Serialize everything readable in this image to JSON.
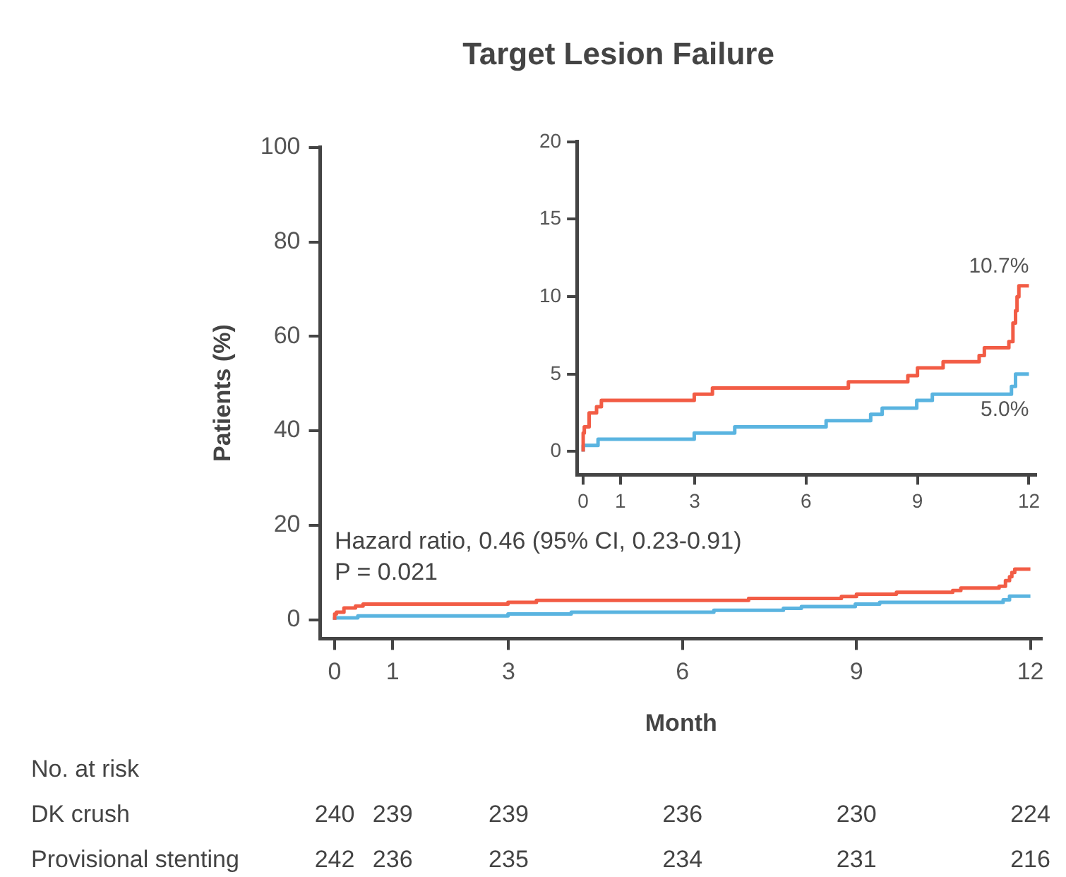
{
  "chart_data": [
    {
      "type": "step",
      "title": "Target Lesion Failure",
      "xlabel": "Month",
      "ylabel": "Patients (%)",
      "xlim": [
        -0.25,
        12.2
      ],
      "xticks": [
        0,
        1,
        3,
        6,
        9,
        12
      ],
      "ylim": [
        -4,
        100
      ],
      "yticks": [
        0,
        20,
        40,
        60,
        80,
        100
      ],
      "grid": false,
      "legend": false,
      "series": [
        {
          "color": "#f25c45",
          "x": [
            0,
            0.03,
            0.16,
            0.36,
            0.49,
            2.99,
            3.48,
            7.14,
            8.74,
            9.0,
            9.69,
            10.66,
            10.8,
            11.46,
            11.57,
            11.64,
            11.68,
            11.73,
            11.77,
            12
          ],
          "values": [
            0,
            1.2,
            1.6,
            2.5,
            2.9,
            3.3,
            3.7,
            4.1,
            4.5,
            4.9,
            5.4,
            5.8,
            6.2,
            6.7,
            7.1,
            8.3,
            9.1,
            10.0,
            10.7,
            10.7
          ]
        },
        {
          "color": "#5ab4e0",
          "x": [
            0,
            0.4,
            2.99,
            4.08,
            6.54,
            7.74,
            8.05,
            8.98,
            9.4,
            11.53,
            11.64,
            11.7,
            12
          ],
          "values": [
            0,
            0.4,
            0.8,
            1.2,
            1.6,
            2.0,
            2.4,
            2.8,
            3.3,
            3.7,
            4.2,
            5.0,
            5.0
          ]
        }
      ],
      "annotations": [
        "Hazard ratio, 0.46 (95% CI, 0.23-0.91)",
        "P = 0.021",
        "No. at risk",
        "DK crush",
        "240",
        "239",
        "239",
        "236",
        "230",
        "224",
        "Provisional stenting",
        "242",
        "236",
        "235",
        "234",
        "231",
        "216"
      ]
    },
    {
      "type": "step",
      "xlim": [
        -0.17,
        12.2
      ],
      "xticks": [
        0,
        1,
        3,
        6,
        9,
        12
      ],
      "ylim": [
        -1.5,
        20
      ],
      "yticks": [
        0,
        5,
        10,
        15,
        20
      ],
      "grid": false,
      "legend": false,
      "series": [
        {
          "color": "#f25c45",
          "x": [
            0,
            0.03,
            0.16,
            0.36,
            0.49,
            2.99,
            3.48,
            7.14,
            8.74,
            9.0,
            9.69,
            10.66,
            10.8,
            11.46,
            11.57,
            11.64,
            11.68,
            11.73,
            11.77,
            12
          ],
          "values": [
            0,
            1.2,
            1.6,
            2.5,
            2.9,
            3.3,
            3.7,
            4.1,
            4.5,
            4.9,
            5.4,
            5.8,
            6.2,
            6.7,
            7.1,
            8.3,
            9.1,
            10.0,
            10.7,
            10.7
          ]
        },
        {
          "color": "#5ab4e0",
          "x": [
            0,
            0.4,
            2.99,
            4.08,
            6.54,
            7.74,
            8.05,
            8.98,
            9.4,
            11.53,
            11.64,
            11.7,
            12
          ],
          "values": [
            0,
            0.4,
            0.8,
            1.2,
            1.6,
            2.0,
            2.4,
            2.8,
            3.3,
            3.7,
            4.2,
            5.0,
            5.0
          ]
        }
      ],
      "annotations": [
        {
          "text": "10.7%",
          "x": 12,
          "y": 10.7
        },
        {
          "text": "5.0%",
          "x": 12,
          "y": 5.0
        }
      ]
    }
  ]
}
